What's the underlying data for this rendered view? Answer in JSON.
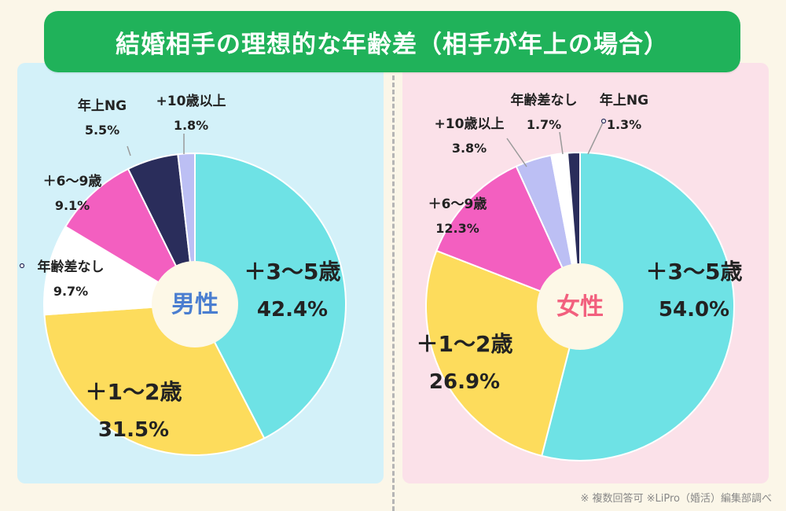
{
  "title": "結婚相手の理想的な年齢差（相手が年上の場合）",
  "note": "※ 複数回答可 ※LiPro（婚活）編集部調べ",
  "colors": {
    "cyan": "#6ee2e5",
    "yellow": "#fddc5c",
    "white": "#ffffff",
    "pink": "#f35fc0",
    "navy": "#2a2d5b",
    "lavender": "#bcbff4",
    "title_green": "#20b25a",
    "male_label": "#4a7ed0",
    "female_label": "#f2607e"
  },
  "chart_data": [
    {
      "type": "pie",
      "center_label": "男性",
      "slices": [
        {
          "label": "＋3〜5歳",
          "value": 42.4,
          "value_text": "42.4%",
          "color": "cyan"
        },
        {
          "label": "＋1〜2歳",
          "value": 31.5,
          "value_text": "31.5%",
          "color": "yellow"
        },
        {
          "label": "年齢差なし",
          "value": 9.7,
          "value_text": "9.7%",
          "color": "white"
        },
        {
          "label": "＋6〜9歳",
          "value": 9.1,
          "value_text": "9.1%",
          "color": "pink"
        },
        {
          "label": "年上NG",
          "value": 5.5,
          "value_text": "5.5%",
          "color": "navy"
        },
        {
          "label": "+10歳以上",
          "value": 1.8,
          "value_text": "1.8%",
          "color": "lavender"
        }
      ]
    },
    {
      "type": "pie",
      "center_label": "女性",
      "slices": [
        {
          "label": "＋3〜5歳",
          "value": 54.0,
          "value_text": "54.0%",
          "color": "cyan"
        },
        {
          "label": "＋1〜2歳",
          "value": 26.9,
          "value_text": "26.9%",
          "color": "yellow"
        },
        {
          "label": "＋6〜9歳",
          "value": 12.3,
          "value_text": "12.3%",
          "color": "pink"
        },
        {
          "label": "+10歳以上",
          "value": 3.8,
          "value_text": "3.8%",
          "color": "lavender"
        },
        {
          "label": "年齢差なし",
          "value": 1.7,
          "value_text": "1.7%",
          "color": "white"
        },
        {
          "label": "年上NG",
          "value": 1.3,
          "value_text": "1.3%",
          "color": "navy"
        }
      ]
    }
  ]
}
